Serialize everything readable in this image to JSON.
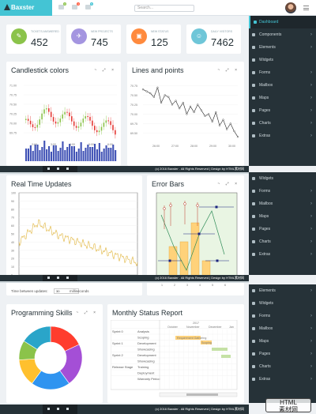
{
  "brand": {
    "name": "Baxster"
  },
  "search": {
    "placeholder": "Search..."
  },
  "topbar": {
    "badges": [
      "3",
      "4",
      "5"
    ]
  },
  "stats": [
    {
      "label": "TICKETS ANSWERED",
      "value": "452",
      "color": "#8bc34a"
    },
    {
      "label": "NEW PROJECTS",
      "value": "745",
      "color": "#a495e0"
    },
    {
      "label": "NEW STATUS",
      "value": "125",
      "color": "#ff8a3d"
    },
    {
      "label": "DAILY VISITORS",
      "value": "7462",
      "color": "#6fc6d8"
    }
  ],
  "sidebar_primary": [
    {
      "label": "Dashboard",
      "active": true
    },
    {
      "label": "Components",
      "arrow": true
    },
    {
      "label": "Elements",
      "arrow": true
    },
    {
      "label": "Widgets"
    },
    {
      "label": "Forms",
      "arrow": true
    },
    {
      "label": "Mailbox",
      "arrow": true
    },
    {
      "label": "Maps",
      "arrow": true
    },
    {
      "label": "Pages",
      "arrow": true
    },
    {
      "label": "Charts",
      "arrow": true
    },
    {
      "label": "Extras",
      "arrow": true
    }
  ],
  "sidebar_second": [
    {
      "label": "Widgets"
    },
    {
      "label": "Forms",
      "arrow": true
    },
    {
      "label": "Mailbox",
      "arrow": true
    },
    {
      "label": "Maps",
      "arrow": true
    },
    {
      "label": "Pages",
      "arrow": true
    },
    {
      "label": "Charts",
      "arrow": true
    },
    {
      "label": "Extras",
      "arrow": true
    }
  ],
  "sidebar_third": [
    {
      "label": "Elements",
      "arrow": true
    },
    {
      "label": "Widgets"
    },
    {
      "label": "Forms",
      "arrow": true
    },
    {
      "label": "Mailbox",
      "arrow": true
    },
    {
      "label": "Maps",
      "arrow": true
    },
    {
      "label": "Pages",
      "arrow": true
    },
    {
      "label": "Charts",
      "arrow": true
    },
    {
      "label": "Extras",
      "arrow": true
    }
  ],
  "footer": {
    "text": "(c) 2016 Baxster . All Rights Reserved | Design by HTML素材网"
  },
  "cards": {
    "candlestick_title": "Candlestick colors",
    "lines_title": "Lines and points",
    "realtime_title": "Real Time Updates",
    "errorbars_title": "Error Bars",
    "skills_title": "Programming Skills",
    "status_title": "Monthly Status Report",
    "tools": "~  ⤢  ×"
  },
  "realtime": {
    "tbu_label": "Time between updates:",
    "tbu_value": "30",
    "tbu_unit": "milliseconds"
  },
  "watermark": {
    "line1": "HTML",
    "line2": "素材网"
  },
  "chart_data": [
    {
      "type": "line",
      "title": "Lines and points",
      "x": [
        0,
        1,
        2,
        3,
        4,
        5,
        6,
        7,
        8,
        9,
        10,
        11,
        12,
        13,
        14,
        15,
        16,
        17,
        18,
        19,
        20,
        21,
        22,
        23,
        24,
        25,
        26
      ],
      "values": [
        70.65,
        70.6,
        70.55,
        70.45,
        70.7,
        70.3,
        70.5,
        70.45,
        70.25,
        70.35,
        70.15,
        70.3,
        70.0,
        70.2,
        70.05,
        70.25,
        70.1,
        69.95,
        70.0,
        69.8,
        70.05,
        69.7,
        69.85,
        69.6,
        69.75,
        69.55,
        69.4
      ],
      "ylim": [
        69.3,
        70.8
      ],
      "yticks": [
        "70.75",
        "70.50",
        "70.25",
        "70.00",
        "69.75",
        "69.50"
      ]
    },
    {
      "type": "pie",
      "title": "Programming Skills",
      "values": [
        18,
        22,
        20,
        14,
        10,
        16
      ],
      "colors": [
        "#ff3d2e",
        "#a44fd6",
        "#2f94f0",
        "#ffc02e",
        "#8bc34a",
        "#2aa5c9"
      ]
    }
  ]
}
